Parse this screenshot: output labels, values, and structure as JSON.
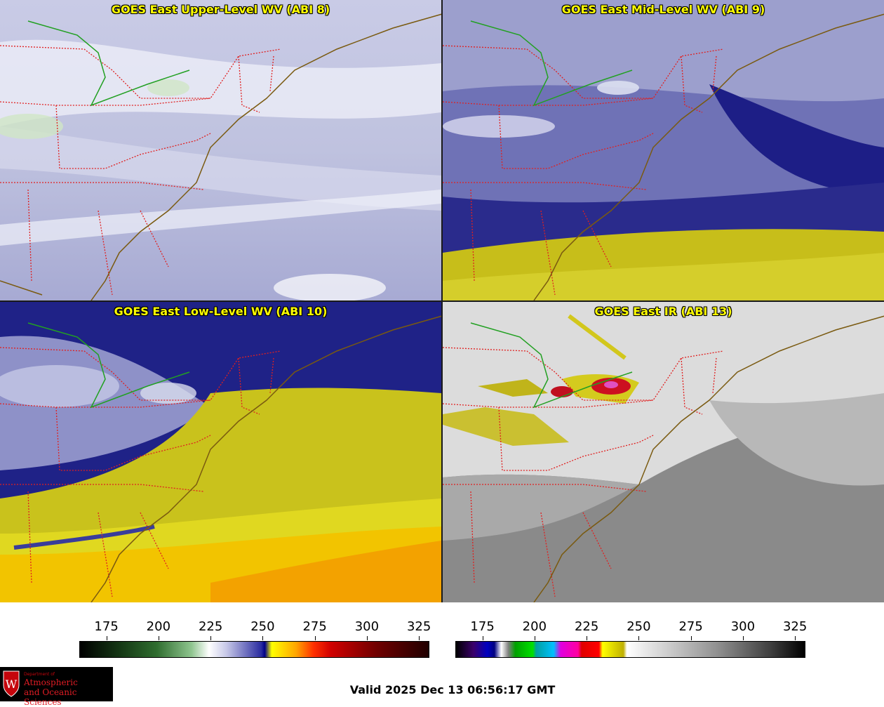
{
  "panels": [
    {
      "title": "GOES East Upper-Level WV (ABI 8)",
      "palette": "wv-upper"
    },
    {
      "title": "GOES East Mid-Level WV (ABI 9)",
      "palette": "wv-mid"
    },
    {
      "title": "GOES East Low-Level WV (ABI 10)",
      "palette": "wv-low"
    },
    {
      "title": "GOES East IR (ABI 13)",
      "palette": "ir"
    }
  ],
  "colorbars": {
    "wv": {
      "ticks": [
        "175",
        "200",
        "225",
        "250",
        "275",
        "300",
        "325"
      ],
      "range": [
        162,
        330
      ]
    },
    "ir": {
      "ticks": [
        "175",
        "200",
        "225",
        "250",
        "275",
        "300",
        "325"
      ],
      "range": [
        162,
        330
      ]
    }
  },
  "valid_text": "Valid 2025 Dec 13 06:56:17 GMT",
  "logo": {
    "dept": "Department of",
    "line1": "Atmospheric",
    "line2": "and Oceanic Sciences",
    "emblem": "W"
  },
  "colors": {
    "title_text": "#ffff00",
    "state_borders": "#e02020",
    "coastline": "#7a5a10",
    "intl_border": "#22a022"
  }
}
